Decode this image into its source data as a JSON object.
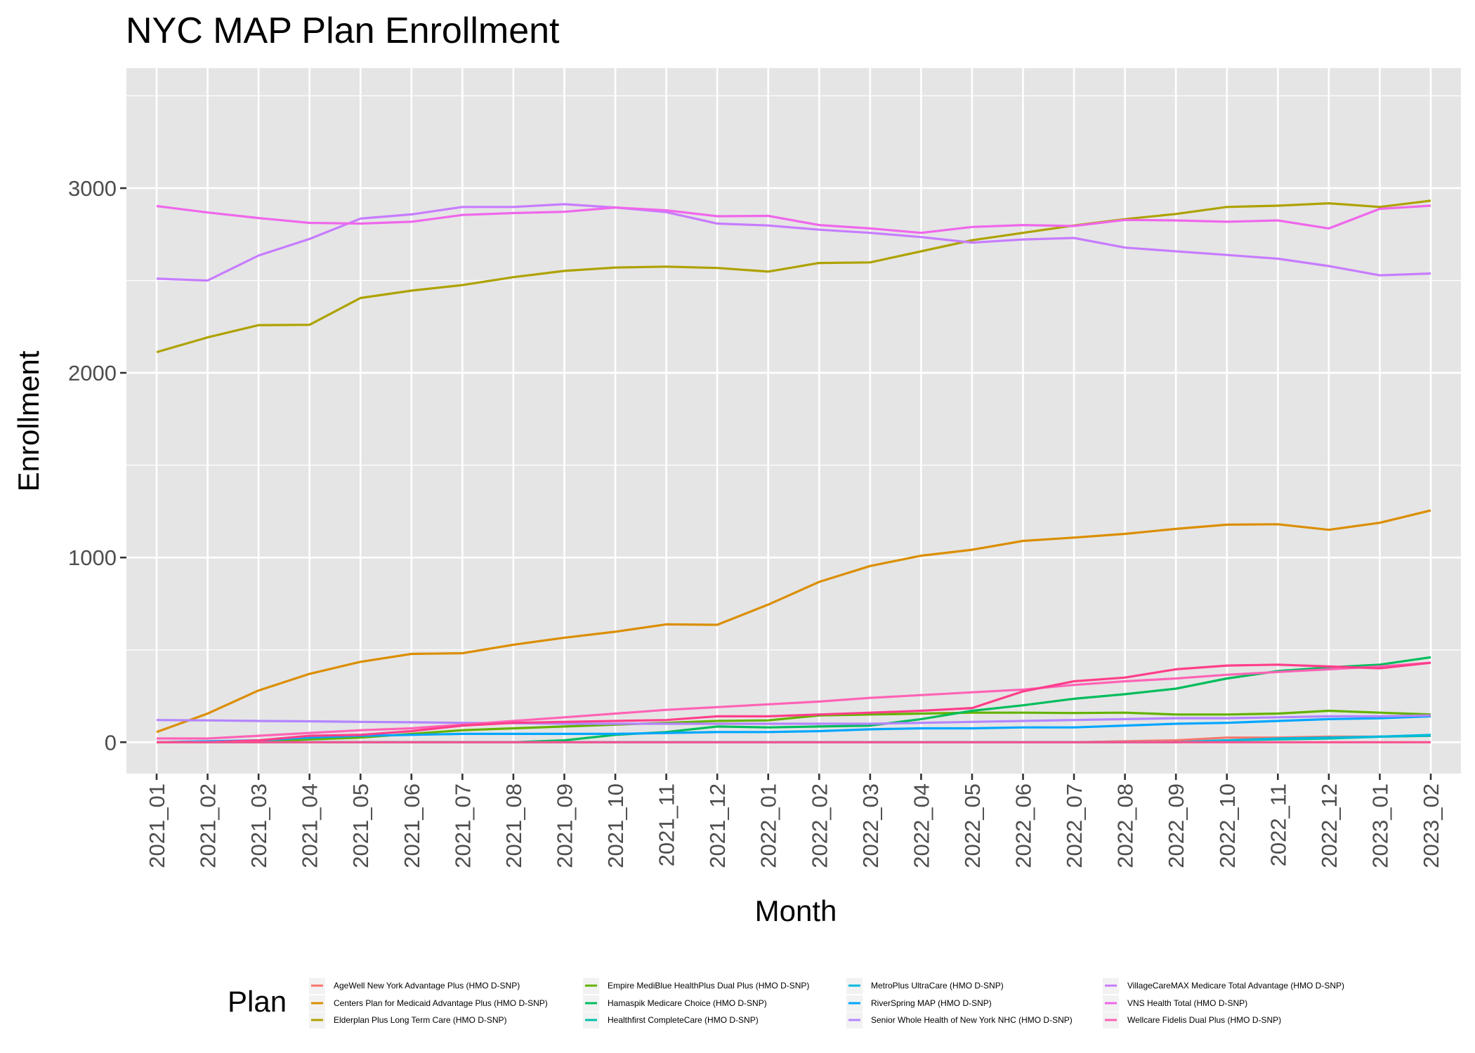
{
  "chart_data": {
    "type": "line",
    "title": "NYC MAP Plan Enrollment",
    "xlabel": "Month",
    "ylabel": "Enrollment",
    "ylim": [
      -170,
      3650
    ],
    "yticks": [
      0,
      1000,
      2000,
      3000
    ],
    "grid": true,
    "legend_title": "Plan",
    "legend_placement": "bottom",
    "categories": [
      "2021_01",
      "2021_02",
      "2021_03",
      "2021_04",
      "2021_05",
      "2021_06",
      "2021_07",
      "2021_08",
      "2021_09",
      "2021_10",
      "2021_11",
      "2021_12",
      "2022_01",
      "2022_02",
      "2022_03",
      "2022_04",
      "2022_05",
      "2022_06",
      "2022_07",
      "2022_08",
      "2022_09",
      "2022_10",
      "2022_11",
      "2022_12",
      "2023_01",
      "2023_02"
    ],
    "series": [
      {
        "name": "AgeWell New York Advantage Plus (HMO D-SNP)",
        "color": "#F8766D",
        "values": [
          0,
          0,
          0,
          0,
          0,
          0,
          0,
          0,
          0,
          0,
          0,
          0,
          0,
          0,
          0,
          0,
          0,
          0,
          0,
          5,
          10,
          25,
          25,
          30,
          30,
          35
        ]
      },
      {
        "name": "Centers Plan for Medicaid Advantage Plus (HMO D-SNP)",
        "color": "#DB8E00",
        "values": [
          55,
          155,
          280,
          370,
          435,
          478,
          482,
          528,
          566,
          598,
          638,
          636,
          745,
          868,
          954,
          1010,
          1042,
          1090,
          1108,
          1128,
          1155,
          1178,
          1180,
          1150,
          1188,
          1255
        ]
      },
      {
        "name": "Elderplan Plus Long Term Care (HMO D-SNP)",
        "color": "#AEA200",
        "values": [
          2112,
          2192,
          2258,
          2260,
          2405,
          2445,
          2475,
          2518,
          2552,
          2570,
          2575,
          2568,
          2548,
          2595,
          2598,
          2658,
          2718,
          2758,
          2798,
          2832,
          2860,
          2898,
          2905,
          2918,
          2898,
          2932
        ]
      },
      {
        "name": "Empire MediBlue HealthPlus Dual Plus (HMO D-SNP)",
        "color": "#64B200",
        "values": [
          0,
          0,
          5,
          15,
          25,
          45,
          65,
          75,
          85,
          95,
          105,
          115,
          118,
          145,
          150,
          155,
          160,
          160,
          158,
          160,
          150,
          150,
          155,
          170,
          160,
          150
        ]
      },
      {
        "name": "Hamaspik Medicare Choice (HMO D-SNP)",
        "color": "#00BD5C",
        "values": [
          0,
          0,
          0,
          0,
          0,
          0,
          0,
          0,
          10,
          40,
          55,
          85,
          80,
          85,
          90,
          125,
          170,
          200,
          235,
          260,
          290,
          345,
          385,
          405,
          420,
          460
        ]
      },
      {
        "name": "Healthfirst CompleteCare (HMO D-SNP)",
        "color": "#00C1A7",
        "values": [
          0,
          0,
          0,
          0,
          0,
          0,
          0,
          0,
          0,
          0,
          0,
          0,
          0,
          0,
          0,
          0,
          0,
          0,
          0,
          0,
          0,
          10,
          15,
          20,
          30,
          35
        ]
      },
      {
        "name": "MetroPlus UltraCare (HMO D-SNP)",
        "color": "#00BADE",
        "values": [
          0,
          0,
          0,
          0,
          0,
          0,
          0,
          0,
          0,
          0,
          0,
          0,
          0,
          0,
          0,
          0,
          0,
          0,
          0,
          0,
          0,
          10,
          20,
          25,
          30,
          40
        ]
      },
      {
        "name": "RiverSpring MAP (HMO D-SNP)",
        "color": "#00A6FF",
        "values": [
          0,
          5,
          10,
          25,
          35,
          40,
          45,
          45,
          45,
          45,
          50,
          55,
          55,
          60,
          70,
          75,
          75,
          80,
          80,
          90,
          100,
          105,
          115,
          125,
          130,
          140
        ]
      },
      {
        "name": "Senior Whole Health of New York NHC (HMO D-SNP)",
        "color": "#B385FF",
        "values": [
          120,
          118,
          115,
          113,
          110,
          108,
          105,
          103,
          100,
          100,
          100,
          100,
          100,
          100,
          100,
          105,
          110,
          115,
          120,
          125,
          130,
          130,
          135,
          140,
          140,
          145
        ]
      },
      {
        "name": "VillageCareMAX Medicare Total Advantage (HMO D-SNP)",
        "color": "#C77CFF",
        "values": [
          2510,
          2500,
          2635,
          2725,
          2835,
          2858,
          2898,
          2898,
          2913,
          2895,
          2870,
          2808,
          2798,
          2775,
          2758,
          2735,
          2705,
          2722,
          2730,
          2678,
          2658,
          2638,
          2618,
          2578,
          2528,
          2538
        ]
      },
      {
        "name": "VNS Health Total (HMO D-SNP)",
        "color": "#EF67EB",
        "values": [
          2903,
          2868,
          2838,
          2812,
          2808,
          2818,
          2855,
          2865,
          2872,
          2895,
          2880,
          2848,
          2850,
          2800,
          2782,
          2758,
          2790,
          2800,
          2795,
          2828,
          2825,
          2818,
          2825,
          2782,
          2888,
          2905
        ]
      },
      {
        "name": "Wellcare Fidelis Dual Plus (HMO D-SNP)",
        "color": "#FF63B6",
        "values": [
          20,
          20,
          35,
          50,
          65,
          75,
          95,
          115,
          135,
          155,
          175,
          190,
          205,
          220,
          240,
          255,
          270,
          285,
          310,
          330,
          345,
          365,
          380,
          395,
          410,
          430
        ]
      },
      {
        "name": "",
        "color": "#FF3E8A",
        "values": [
          0,
          0,
          10,
          35,
          40,
          60,
          90,
          105,
          110,
          115,
          120,
          140,
          140,
          150,
          160,
          170,
          185,
          275,
          330,
          350,
          395,
          415,
          420,
          410,
          400,
          430
        ]
      },
      {
        "name": "",
        "color": "#F8528F",
        "values": [
          0,
          0,
          0,
          0,
          0,
          0,
          0,
          0,
          0,
          0,
          0,
          0,
          0,
          0,
          0,
          0,
          0,
          0,
          0,
          0,
          0,
          0,
          0,
          0,
          0,
          0
        ]
      }
    ]
  }
}
